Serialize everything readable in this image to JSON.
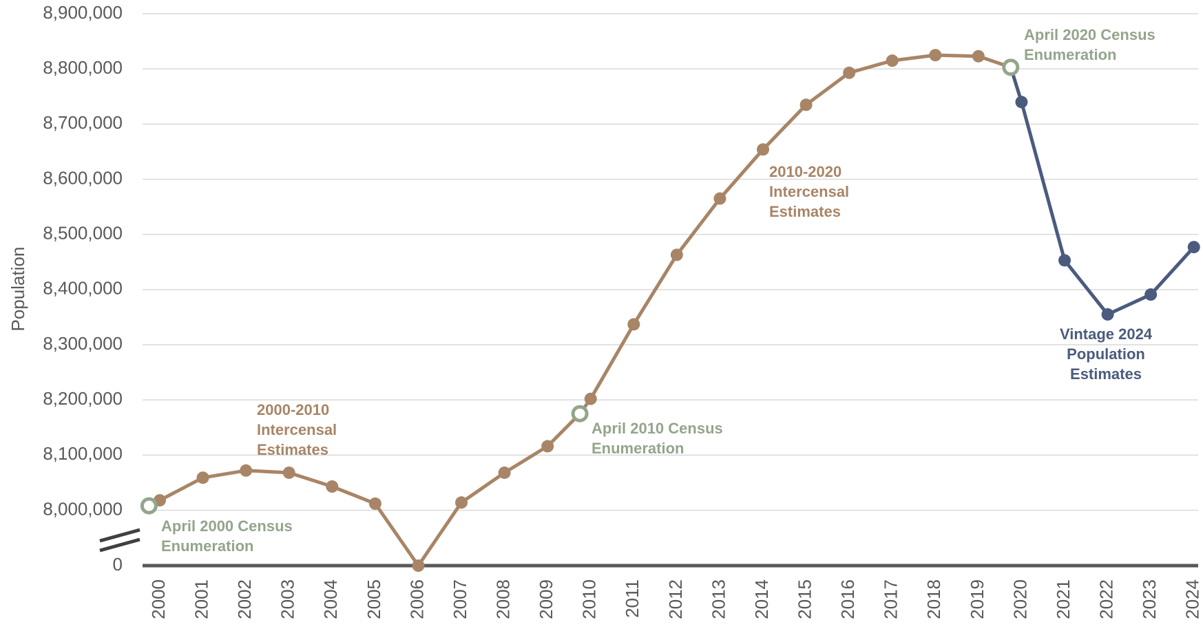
{
  "chart_data": {
    "type": "line",
    "y_label": "Population",
    "xlim": [
      1999.6,
      2024.1
    ],
    "xticks": [
      2000,
      2001,
      2002,
      2003,
      2004,
      2005,
      2006,
      2007,
      2008,
      2009,
      2010,
      2011,
      2012,
      2013,
      2014,
      2015,
      2016,
      2017,
      2018,
      2019,
      2020,
      2021,
      2022,
      2023,
      2024
    ],
    "ylim": [
      8000000,
      8900000
    ],
    "yticks": [
      {
        "value": 0,
        "label": "0"
      },
      {
        "value": 8000000,
        "label": "8,000,000"
      },
      {
        "value": 8100000,
        "label": "8,100,000"
      },
      {
        "value": 8200000,
        "label": "8,200,000"
      },
      {
        "value": 8300000,
        "label": "8,300,000"
      },
      {
        "value": 8400000,
        "label": "8,400,000"
      },
      {
        "value": 8500000,
        "label": "8,500,000"
      },
      {
        "value": 8600000,
        "label": "8,600,000"
      },
      {
        "value": 8700000,
        "label": "8,700,000"
      },
      {
        "value": 8800000,
        "label": "8,800,000"
      },
      {
        "value": 8900000,
        "label": "8,900,000"
      }
    ],
    "axis_break": true,
    "grid": true,
    "series": [
      {
        "name": "2000-2010 Intercensal Estimates",
        "color": "#a88566",
        "x": [
          2000,
          2001,
          2002,
          2003,
          2004,
          2005,
          2006,
          2007,
          2008,
          2009
        ],
        "values": [
          8018000,
          8059000,
          8072000,
          8068000,
          8043000,
          8012000,
          7993000,
          8014000,
          8068000,
          8116000
        ]
      },
      {
        "name": "2010-2020 Intercensal Estimates",
        "color": "#a88566",
        "x": [
          2010,
          2011,
          2012,
          2013,
          2014,
          2015,
          2016,
          2017,
          2018,
          2019
        ],
        "values": [
          8202000,
          8337000,
          8463000,
          8565000,
          8654000,
          8735000,
          8793000,
          8815000,
          8825000,
          8823000
        ]
      },
      {
        "name": "Vintage 2024 Population Estimates",
        "color": "#4b5b7e",
        "x": [
          2020,
          2021,
          2022,
          2023,
          2024
        ],
        "values": [
          8740000,
          8453000,
          8355000,
          8391000,
          8477000
        ]
      },
      {
        "color": "#93a58b",
        "marker": "hollow",
        "x": [
          1999.75,
          2009.75,
          2019.75
        ],
        "values": [
          8008000,
          8175000,
          8803000
        ],
        "point_labels": [
          "April 2000 Census Enumeration",
          "April 2010 Census Enumeration",
          "April 2020 Census Enumeration"
        ]
      }
    ]
  }
}
